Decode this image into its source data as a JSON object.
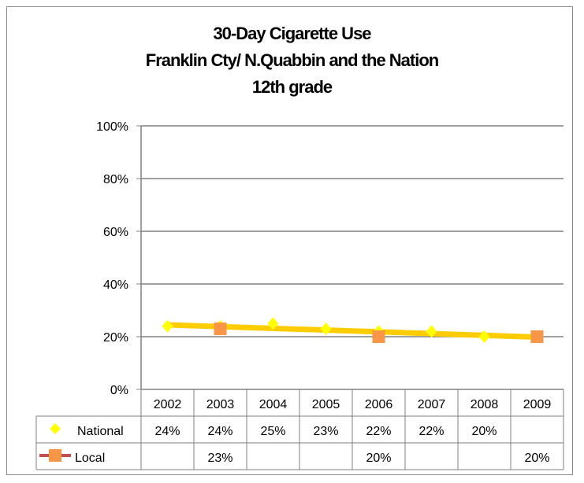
{
  "chart_data": {
    "type": "line",
    "title_lines": [
      "30-Day Cigarette Use",
      "Franklin Cty/ N.Quabbin and the Nation",
      "12th grade"
    ],
    "categories": [
      "2002",
      "2003",
      "2004",
      "2005",
      "2006",
      "2007",
      "2008",
      "2009"
    ],
    "y_ticks": [
      "0%",
      "20%",
      "40%",
      "60%",
      "80%",
      "100%"
    ],
    "ylim": [
      0,
      100
    ],
    "grid": true,
    "legend_placement": "data-table",
    "series": [
      {
        "name": "National",
        "values": [
          24,
          24,
          25,
          23,
          22,
          22,
          20,
          null
        ],
        "labels": [
          "24%",
          "24%",
          "25%",
          "23%",
          "22%",
          "22%",
          "20%",
          ""
        ],
        "marker": "diamond",
        "color": "#ffff00"
      },
      {
        "name": "Local",
        "values": [
          null,
          23,
          null,
          null,
          20,
          null,
          null,
          20
        ],
        "labels": [
          "",
          "23%",
          "",
          "",
          "20%",
          "",
          "",
          "20%"
        ],
        "marker": "square",
        "color": "#f79646",
        "line_color": "#c0504d"
      }
    ],
    "trendline_color": "#ffcc00"
  }
}
